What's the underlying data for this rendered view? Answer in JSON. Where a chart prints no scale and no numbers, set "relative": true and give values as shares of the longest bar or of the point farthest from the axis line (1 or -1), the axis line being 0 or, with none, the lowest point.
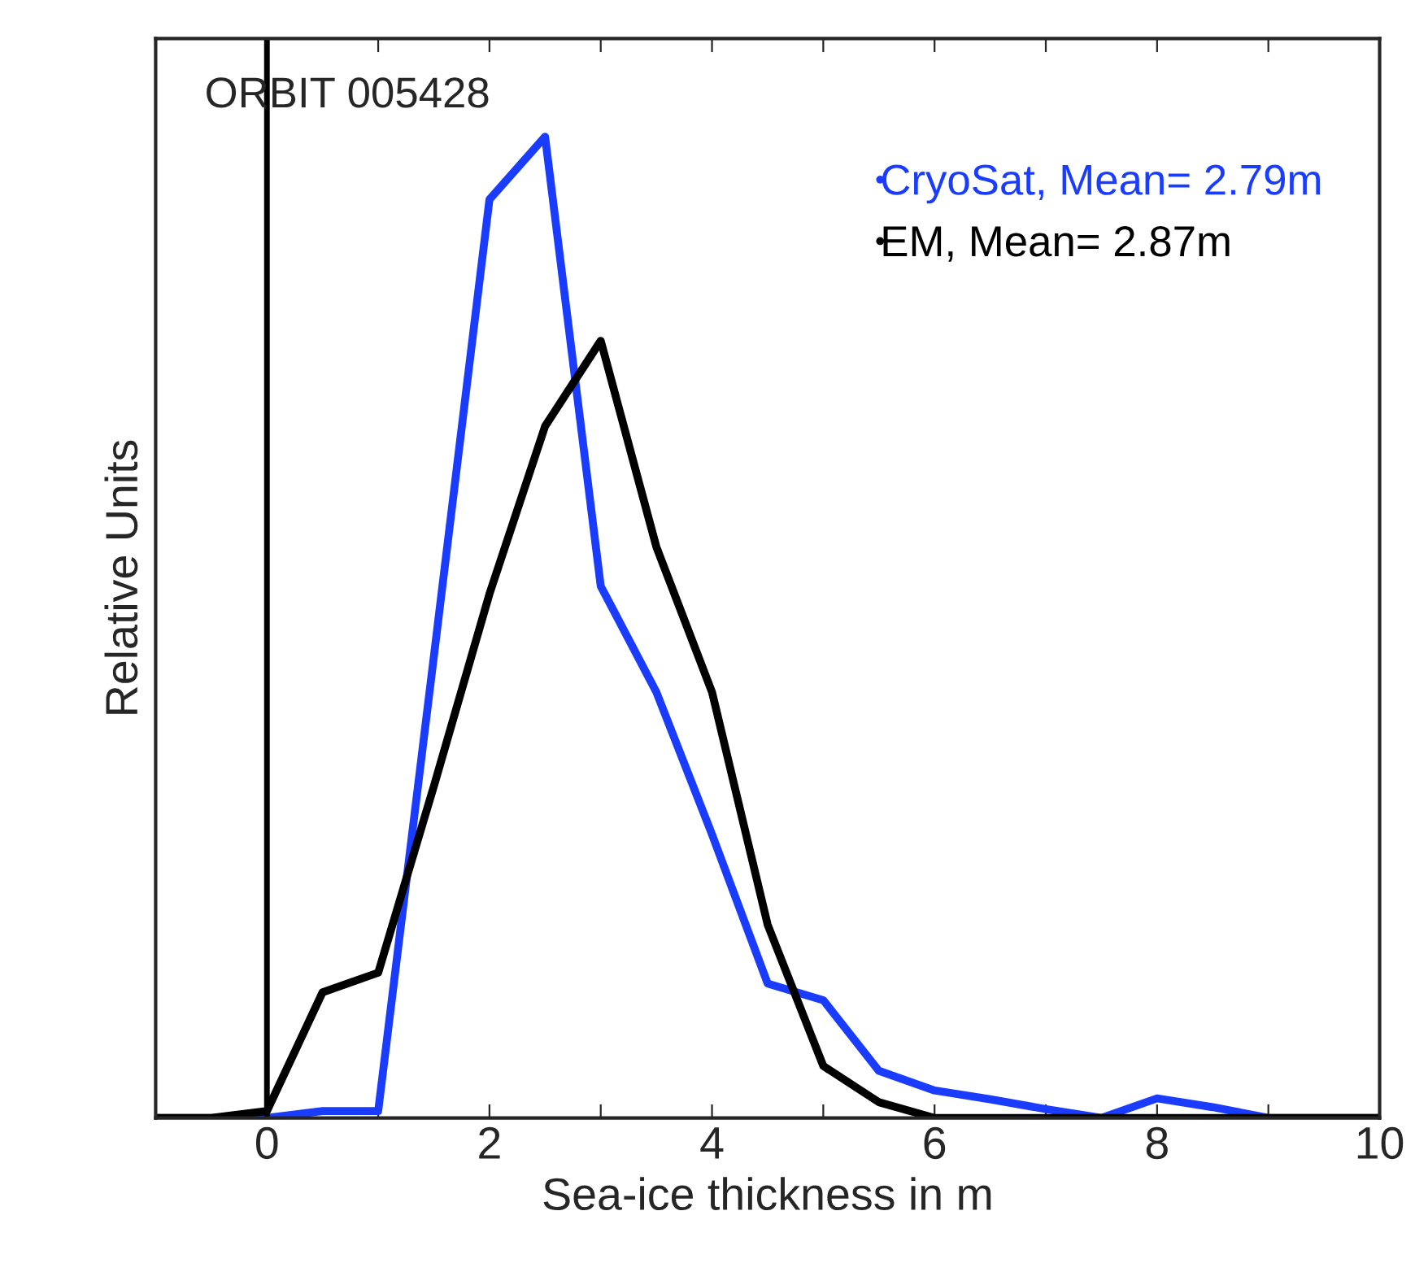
{
  "chart_data": {
    "type": "line",
    "relative": true,
    "xlabel": "Sea-ice thickness in m",
    "ylabel": "Relative Units",
    "x": [
      -1,
      -0.5,
      0,
      0.5,
      1,
      1.5,
      2,
      2.5,
      3,
      3.5,
      4,
      4.5,
      5,
      5.5,
      6,
      6.5,
      7,
      7.5,
      8,
      8.5,
      9,
      9.5,
      10
    ],
    "series": [
      {
        "name": "CryoSat, Mean= 2.79m",
        "color": "#1a3cff",
        "values": [
          0,
          0,
          0,
          0.007,
          0.007,
          0.47,
          0.936,
          1,
          0.542,
          0.434,
          0.289,
          0.137,
          0.12,
          0.048,
          0.028,
          0.019,
          0.009,
          0,
          0.02,
          0.011,
          0,
          0,
          0
        ]
      },
      {
        "name": "EM, Mean= 2.87m",
        "color": "#000000",
        "values": [
          0,
          0,
          0.007,
          0.128,
          0.148,
          0.338,
          0.534,
          0.705,
          0.792,
          0.582,
          0.434,
          0.197,
          0.053,
          0.016,
          0,
          0,
          0,
          0,
          0,
          0,
          0,
          0,
          0
        ]
      }
    ],
    "xlim": [
      -1,
      10
    ],
    "xticks": [
      {
        "value": -1,
        "label": null
      },
      0,
      {
        "value": 1,
        "label": null
      },
      2,
      {
        "value": 3,
        "label": null
      },
      4,
      {
        "value": 5,
        "label": null
      },
      6,
      {
        "value": 7,
        "label": null
      },
      8,
      {
        "value": 9,
        "label": null
      },
      10
    ],
    "ref_lines": [
      {
        "axis": "x",
        "value": 0,
        "color": "#000000"
      }
    ],
    "annotations": [
      "ORBIT 005428"
    ],
    "legend": "top right",
    "grid": false,
    "marker": "none",
    "line_style": "solid"
  }
}
